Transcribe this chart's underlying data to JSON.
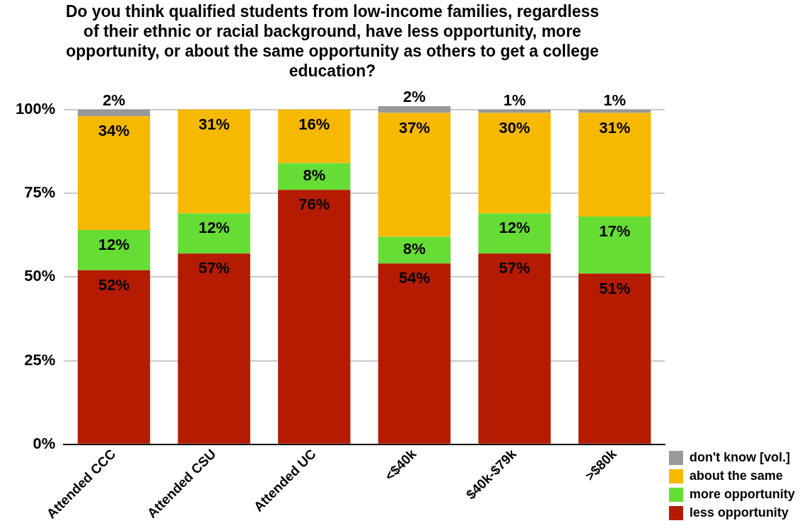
{
  "chart_data": {
    "type": "bar",
    "title": "Do you think qualified students from low-income families, regardless of their ethnic or racial background, have less opportunity, more opportunity, or about the same opportunity as others to get a college education?",
    "categories": [
      "Attended CCC",
      "Attended CSU",
      "Attended UC",
      "<$40k",
      "$40k-$79k",
      ">$80k"
    ],
    "stacked": true,
    "series": [
      {
        "name": "less opportunity",
        "color": "#b41b00",
        "values": [
          52,
          57,
          76,
          54,
          57,
          51
        ],
        "value_labels": [
          "52%",
          "57%",
          "76%",
          "54%",
          "57%",
          "51%"
        ]
      },
      {
        "name": "more opportunity",
        "color": "#66dd35",
        "values": [
          12,
          12,
          8,
          8,
          12,
          17
        ],
        "value_labels": [
          "12%",
          "12%",
          "8%",
          "8%",
          "12%",
          "17%"
        ]
      },
      {
        "name": "about the same",
        "color": "#f7b900",
        "values": [
          34,
          31,
          16,
          37,
          30,
          31
        ],
        "value_labels": [
          "34%",
          "31%",
          "16%",
          "37%",
          "30%",
          "31%"
        ]
      },
      {
        "name": "don't know [vol.]",
        "color": "#999999",
        "values": [
          2,
          null,
          null,
          2,
          1,
          1
        ],
        "value_labels": [
          "2%",
          null,
          null,
          "2%",
          "1%",
          "1%"
        ]
      }
    ],
    "ylim": [
      0,
      101
    ],
    "yticks": [
      {
        "value": 0,
        "label": "0%"
      },
      {
        "value": 25,
        "label": "25%"
      },
      {
        "value": 50,
        "label": "50%"
      },
      {
        "value": 75,
        "label": "75%"
      },
      {
        "value": 100,
        "label": "100%"
      }
    ],
    "grid": "y",
    "legend": "bottom right"
  }
}
